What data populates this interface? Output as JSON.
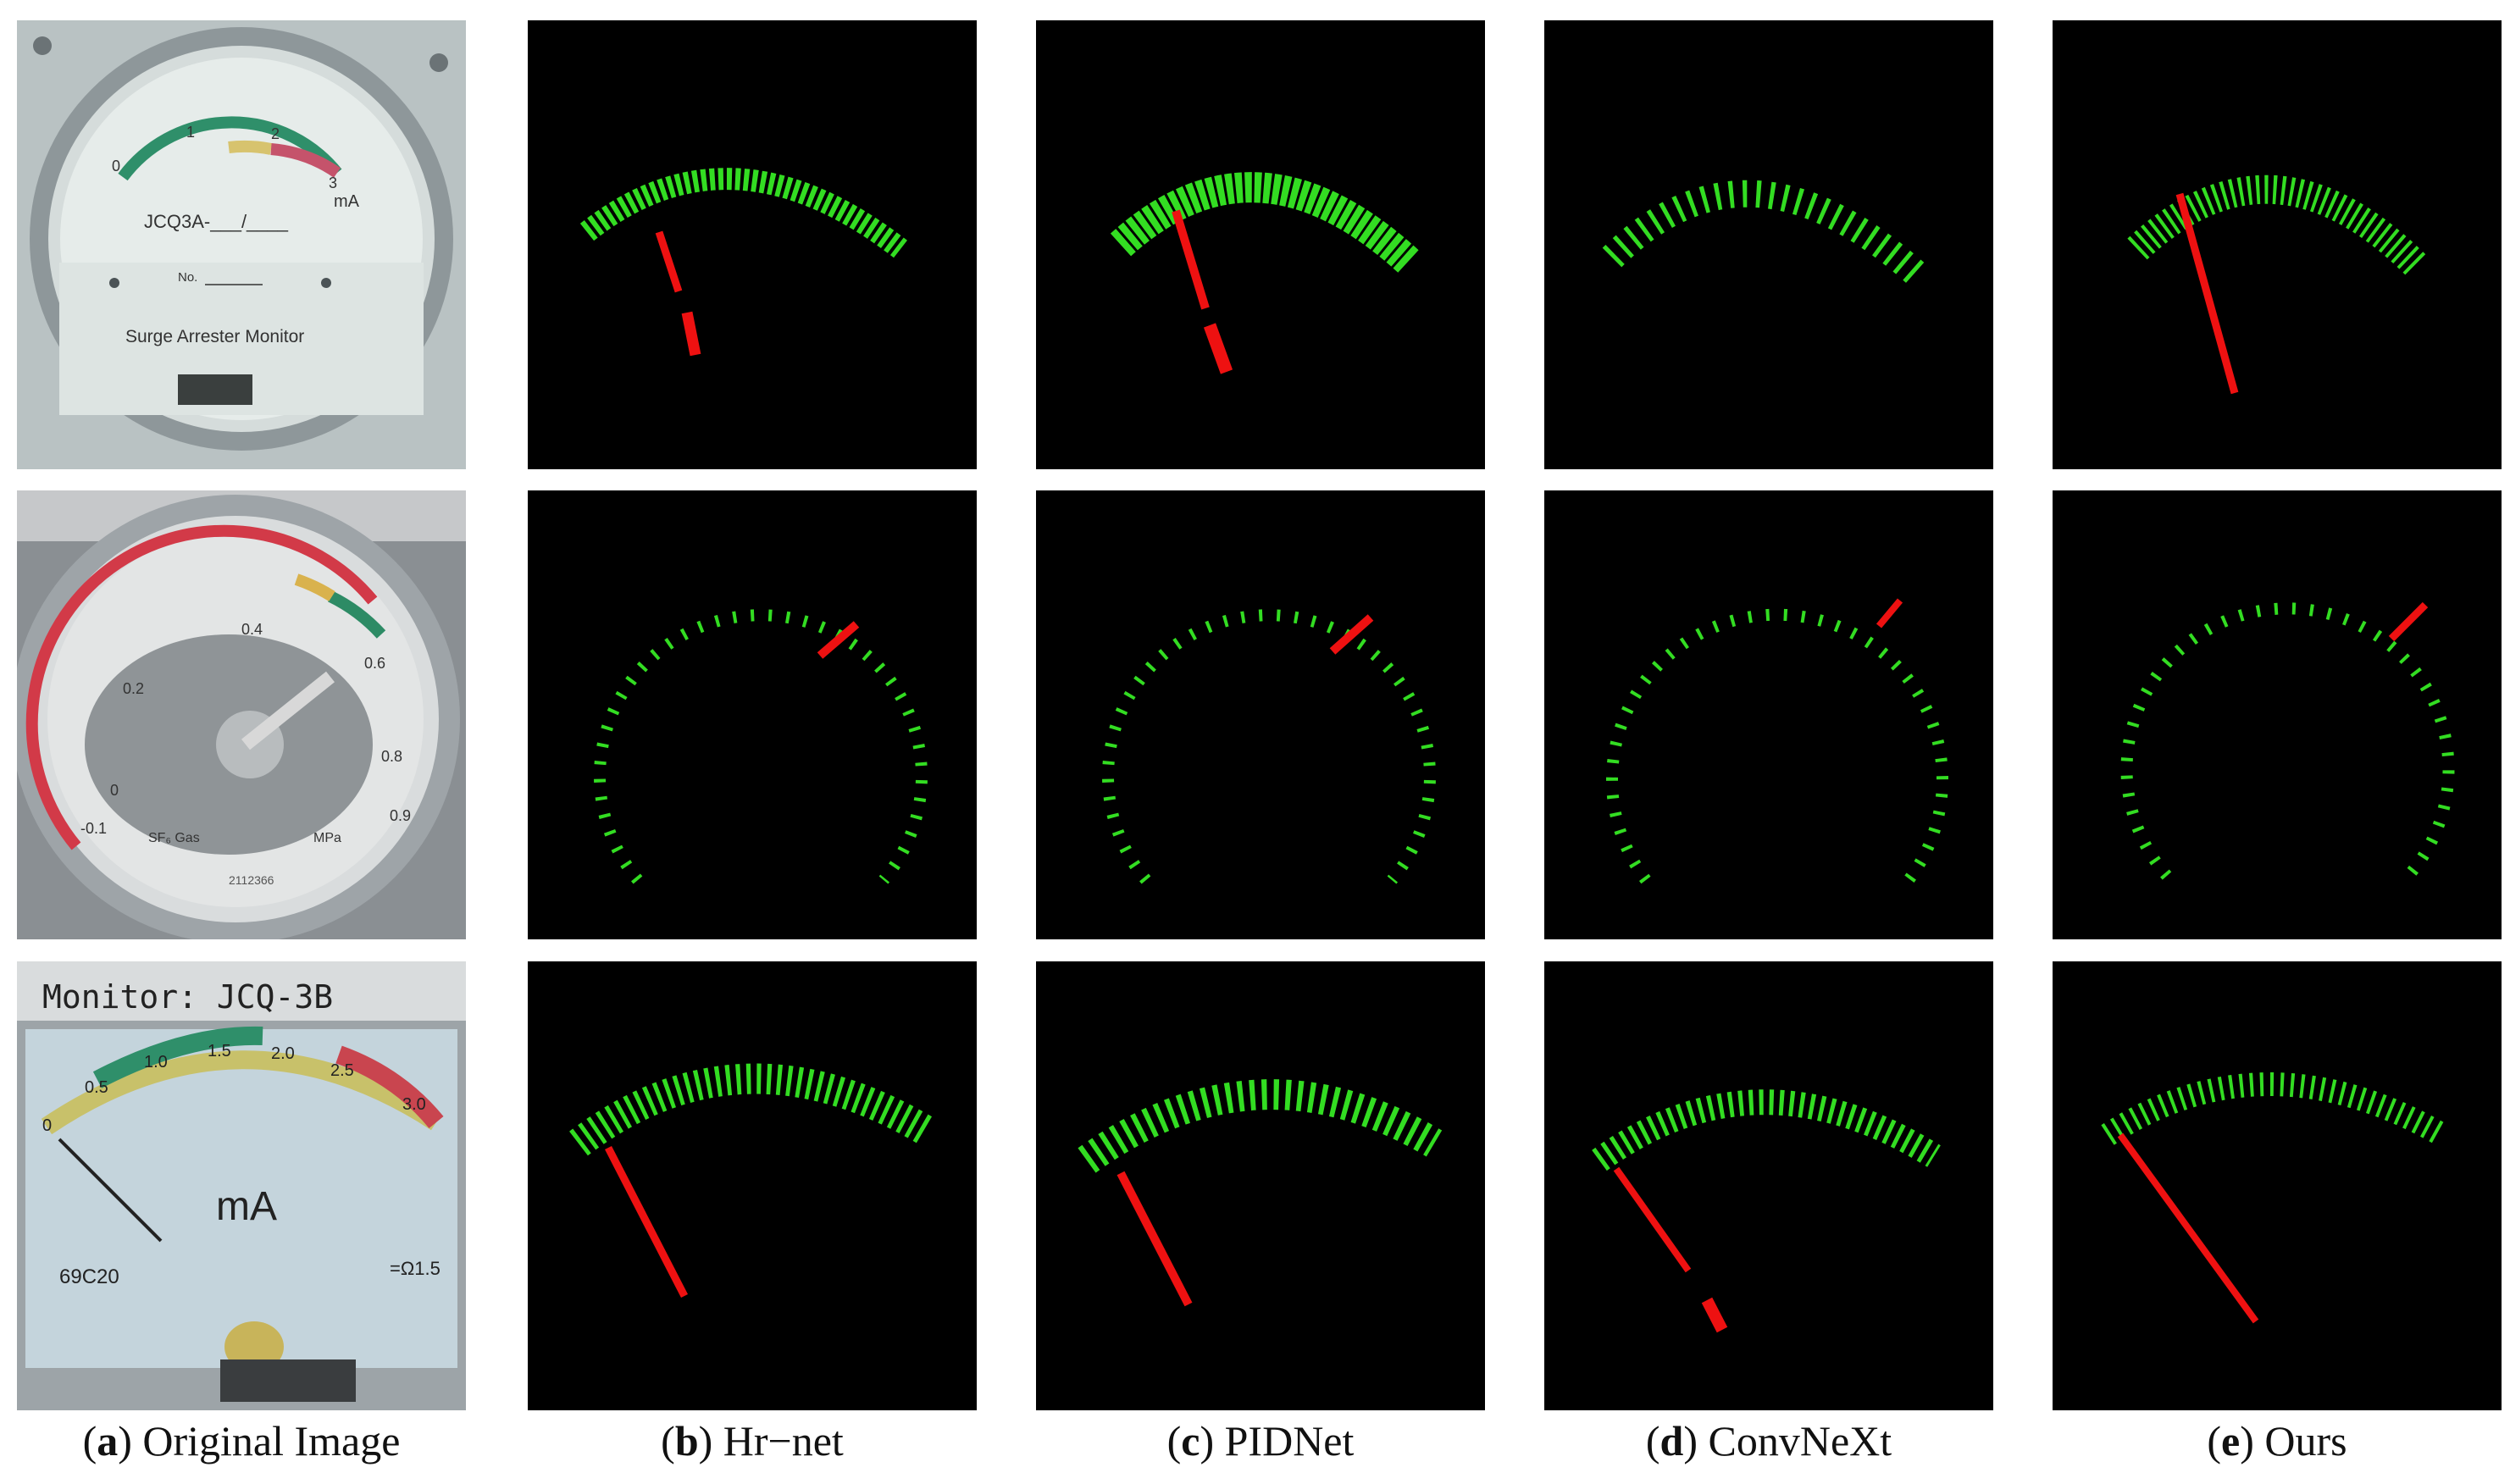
{
  "photos": [
    {
      "top_text": "JCQ3A-___/____",
      "unit": "mA",
      "scale": [
        "0",
        "1",
        "2",
        "3"
      ],
      "no_label": "No.",
      "name": "Surge Arrester Monitor"
    },
    {
      "scale": [
        "-0.1",
        "0",
        "0.2",
        "0.4",
        "0.6",
        "0.8",
        "0.9"
      ],
      "unit": "MPa",
      "gas": "SF₆ Gas",
      "serial": "2112366"
    },
    {
      "header": "Monitor: JCQ-3B",
      "scale": [
        "0",
        "0.5",
        "1.0",
        "1.5",
        "2.0",
        "2.5",
        "3.0"
      ],
      "unit": "mA",
      "code": "69C20",
      "class_mark": "=Ω1.5"
    }
  ],
  "captions": [
    {
      "letter": "a",
      "text": " Original Image"
    },
    {
      "letter": "b",
      "text": " Hr−net"
    },
    {
      "letter": "c",
      "text": " PIDNet"
    },
    {
      "letter": "d",
      "text": " ConvNeXt"
    },
    {
      "letter": "e",
      "text": " Ours"
    }
  ],
  "colors": {
    "scale": "#33dd22",
    "pointer": "#ee1111",
    "mask_background": "#000000"
  }
}
